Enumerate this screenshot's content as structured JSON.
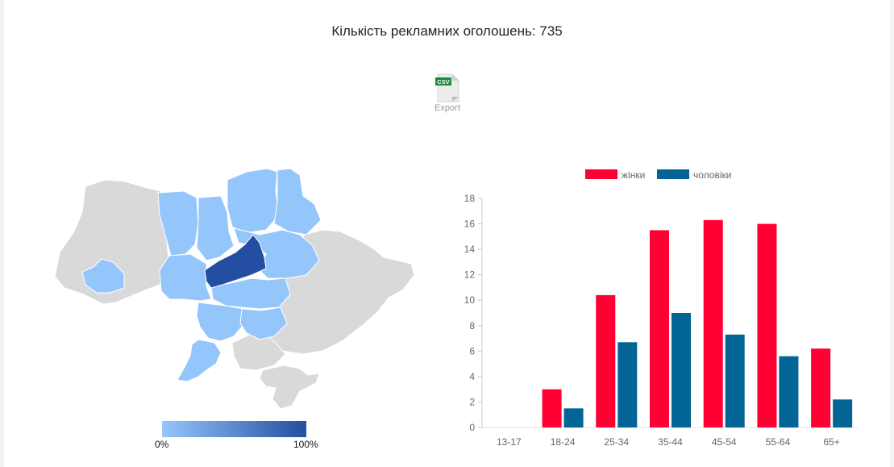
{
  "header": {
    "title": "Кількість рекламних оголошень: 735"
  },
  "export": {
    "icon_text": "CSV",
    "label": "Export",
    "icon": "csv-file-icon"
  },
  "map": {
    "scale_min": "0%",
    "scale_max": "100%",
    "colors": {
      "empty": "#d9d9d9",
      "low": "#95c6fb",
      "high": "#244ea1",
      "border": "#ffffff"
    }
  },
  "chart_data": {
    "type": "bar",
    "categories": [
      "13-17",
      "18-24",
      "25-34",
      "35-44",
      "45-54",
      "55-64",
      "65+"
    ],
    "series": [
      {
        "name": "жінки",
        "color": "#ff0033",
        "values": [
          0,
          3.0,
          10.4,
          15.5,
          16.3,
          16.0,
          6.2
        ]
      },
      {
        "name": "чоловіки",
        "color": "#036595",
        "values": [
          0,
          1.5,
          6.7,
          9.0,
          7.3,
          5.6,
          2.2
        ]
      }
    ],
    "yticks": [
      0,
      2,
      4,
      6,
      8,
      10,
      12,
      14,
      16,
      18
    ],
    "ylim": [
      0,
      18
    ],
    "legend": "top-center",
    "grid": false
  }
}
